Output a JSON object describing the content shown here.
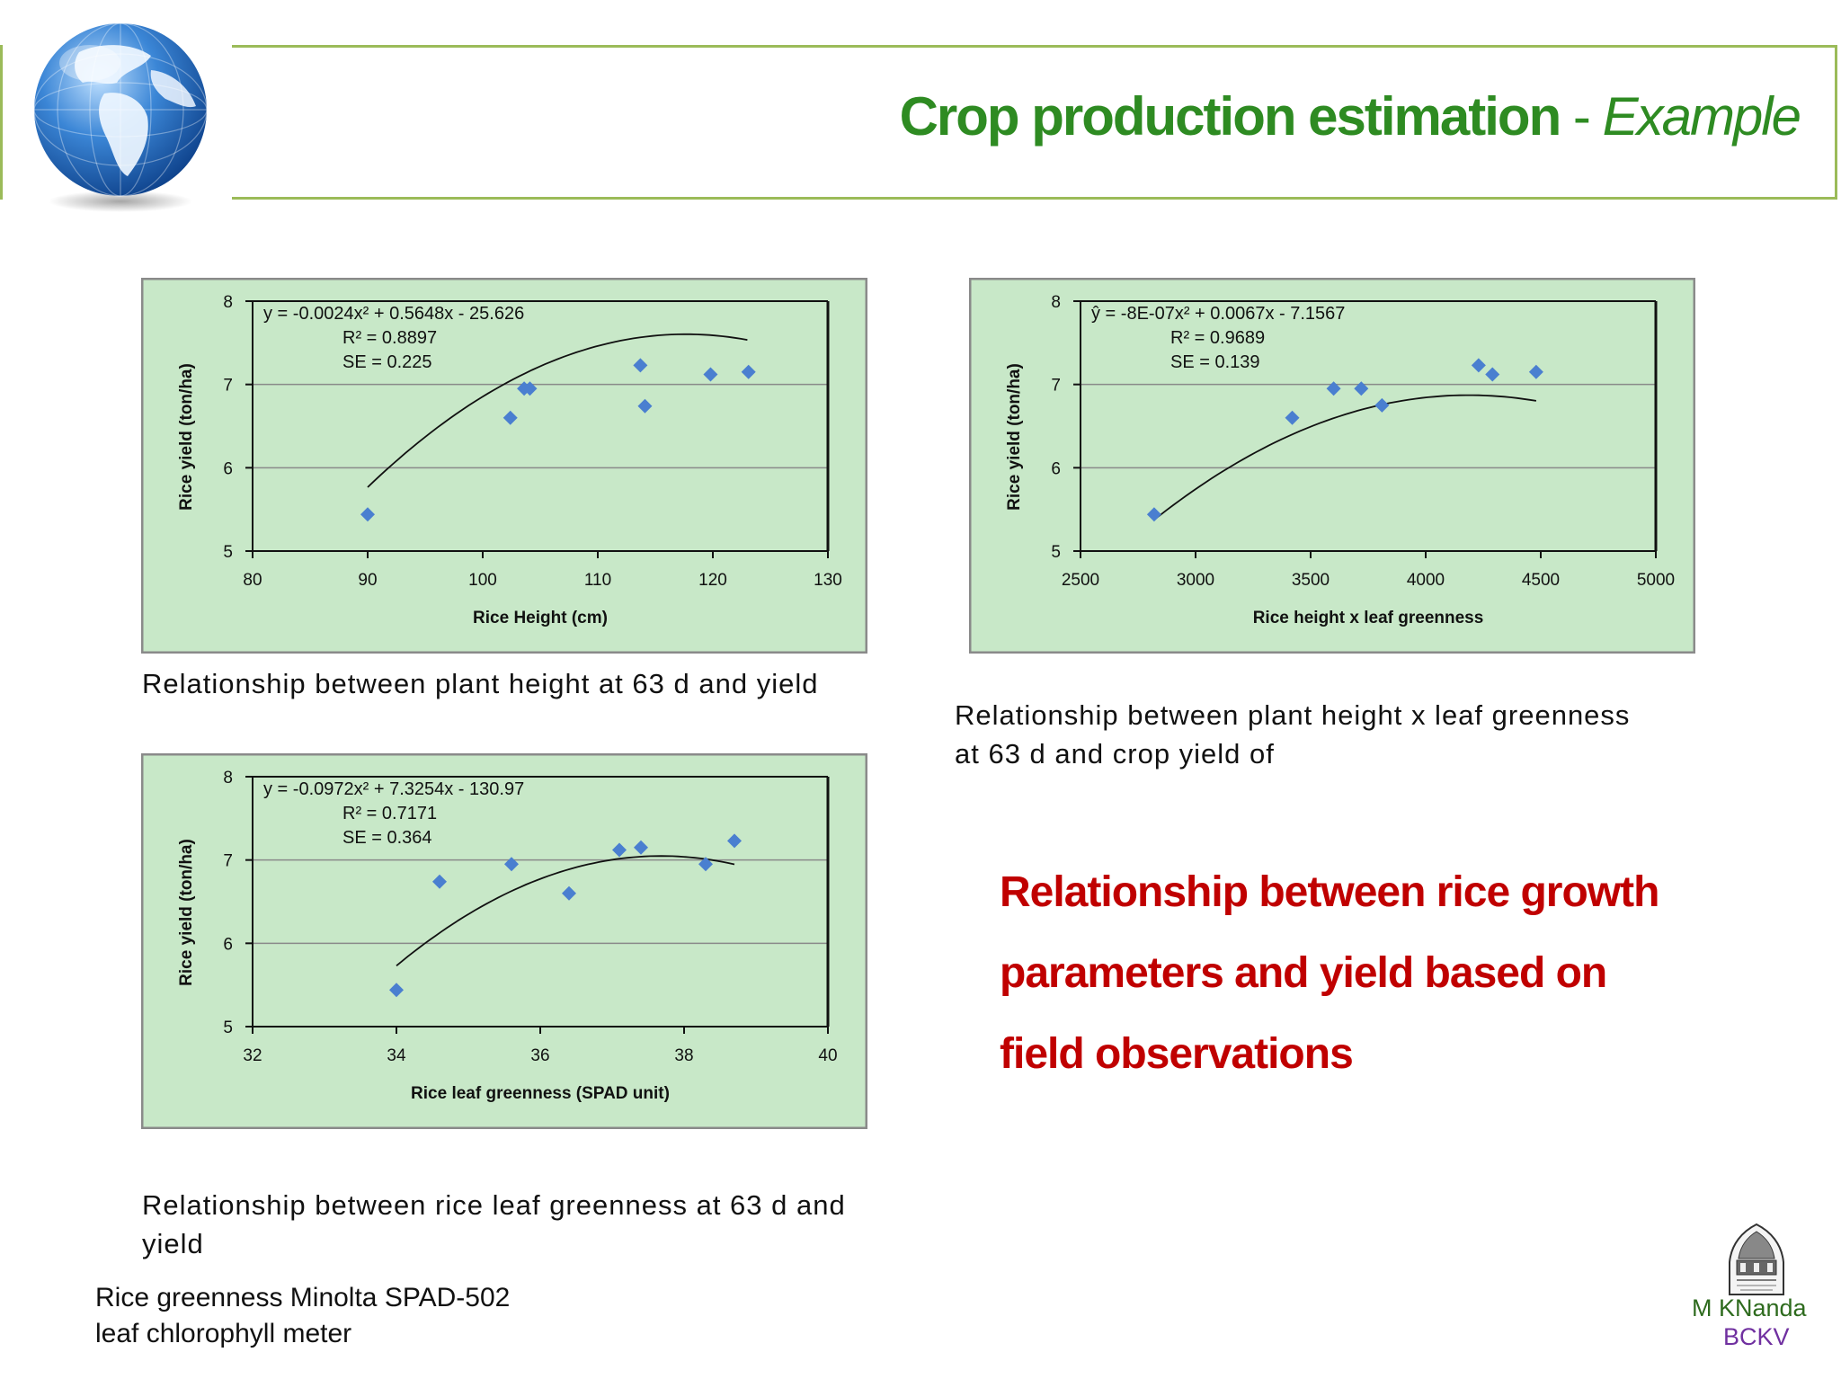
{
  "slide": {
    "title_main": "Crop production estimation",
    "title_sep": " - ",
    "title_sub": "Example",
    "highlight_line1": "Relationship between rice growth",
    "highlight_line2": "parameters and yield based on",
    "highlight_line3": "field observations",
    "note_line1": "Rice greenness Minolta SPAD-502",
    "note_line2": "leaf  chlorophyll meter",
    "author": "M KNanda",
    "institution": "BCKV",
    "globe_icon": "globe-icon",
    "seal_icon": "university-seal-icon"
  },
  "captions": {
    "chart1": "Relationship between plant height at 63 d and yield",
    "chart2_line1": "Relationship between plant height x leaf greenness",
    "chart2_line2": "at 63 d and crop yield of",
    "chart3_line1": "Relationship between rice leaf greenness at 63 d and",
    "chart3_line2": "yield"
  },
  "colors": {
    "panel_bg": "#c8e8c8",
    "marker": "#4a7fd0",
    "title_green": "#2e8b22",
    "highlight_red": "#c00000"
  },
  "chart_data": [
    {
      "type": "scatter",
      "xlabel": "Rice Height (cm)",
      "ylabel": "Rice yield (ton/ha)",
      "xlim": [
        80,
        130
      ],
      "ylim": [
        5,
        8
      ],
      "xticks": [
        "80",
        "90",
        "100",
        "110",
        "120",
        "130"
      ],
      "yticks": [
        "5",
        "6",
        "7",
        "8"
      ],
      "annotations": [
        "y = -0.0024x² + 0.5648x - 25.626",
        "R² = 0.8897",
        "SE = 0.225"
      ],
      "grid": true,
      "x": [
        90,
        102.4,
        103.6,
        104.1,
        113.7,
        114.1,
        119.8,
        123.1
      ],
      "y": [
        5.44,
        6.6,
        6.95,
        6.95,
        7.23,
        6.74,
        7.12,
        7.15
      ],
      "trend": {
        "kind": "quadratic",
        "coef": [
          -0.0024,
          0.5648,
          -25.626
        ],
        "domain": [
          90,
          123
        ]
      }
    },
    {
      "type": "scatter",
      "xlabel": "Rice height x leaf greenness",
      "ylabel": "Rice yield (ton/ha)",
      "xlim": [
        2500,
        5000
      ],
      "ylim": [
        5,
        8
      ],
      "xticks": [
        "2500",
        "3000",
        "3500",
        "4000",
        "4500",
        "5000"
      ],
      "yticks": [
        "5",
        "6",
        "7",
        "8"
      ],
      "annotations": [
        "ŷ = -8E-07x² + 0.0067x - 7.1567",
        "R² = 0.9689",
        "SE = 0.139"
      ],
      "grid": true,
      "x": [
        2820,
        3420,
        3600,
        3720,
        3810,
        4230,
        4290,
        4480
      ],
      "y": [
        5.44,
        6.6,
        6.95,
        6.95,
        6.75,
        7.23,
        7.12,
        7.15
      ],
      "trend": {
        "kind": "quadratic",
        "coef": [
          -8e-07,
          0.0067,
          -7.1567
        ],
        "domain": [
          2820,
          4480
        ]
      }
    },
    {
      "type": "scatter",
      "xlabel": "Rice leaf greenness (SPAD unit)",
      "ylabel": "Rice yield (ton/ha)",
      "xlim": [
        32,
        40
      ],
      "ylim": [
        5,
        8
      ],
      "xticks": [
        "32",
        "34",
        "36",
        "38",
        "40"
      ],
      "yticks": [
        "5",
        "6",
        "7",
        "8"
      ],
      "annotations": [
        "y = -0.0972x² + 7.3254x - 130.97",
        "R² = 0.7171",
        "SE = 0.364"
      ],
      "grid": true,
      "x": [
        34.0,
        34.6,
        35.6,
        36.4,
        37.1,
        37.4,
        38.3,
        38.7
      ],
      "y": [
        5.44,
        6.74,
        6.95,
        6.6,
        7.12,
        7.15,
        6.95,
        7.23
      ],
      "trend": {
        "kind": "quadratic",
        "coef": [
          -0.0972,
          7.3254,
          -130.97
        ],
        "domain": [
          34,
          38.7
        ]
      }
    }
  ]
}
